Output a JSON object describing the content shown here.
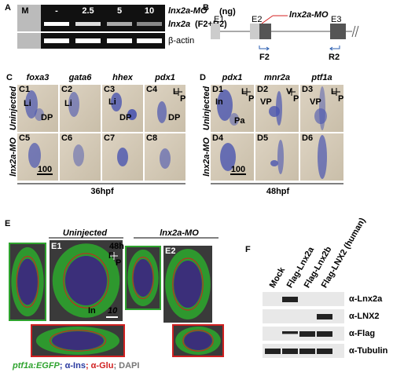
{
  "panels": {
    "a": {
      "label": "A",
      "lanes": [
        "M",
        "-",
        "2.5",
        "5",
        "10"
      ],
      "treatment": "lnx2a-MO",
      "unit": "(ng)",
      "rows": [
        {
          "gene": "lnx2a",
          "primers": "(F2+R2)"
        },
        {
          "gene": "β-actin"
        }
      ]
    },
    "b": {
      "label": "B",
      "exons": [
        "E1",
        "E2",
        "E3"
      ],
      "morpholino": "lnx2a-MO",
      "primers": [
        "F2",
        "R2"
      ]
    },
    "c": {
      "label": "C",
      "columns": [
        "foxa3",
        "gata6",
        "hhex",
        "pdx1"
      ],
      "rows": [
        "Uninjected",
        "lnx2a-MO"
      ],
      "cells": [
        {
          "id": "C1",
          "marks": [
            "Li",
            "DP"
          ]
        },
        {
          "id": "C2",
          "marks": [
            "Li"
          ]
        },
        {
          "id": "C3",
          "marks": [
            "Li",
            "DP"
          ]
        },
        {
          "id": "C4",
          "marks": [
            "DP"
          ],
          "axis": [
            "L",
            "P"
          ]
        },
        {
          "id": "C5",
          "marks": []
        },
        {
          "id": "C6",
          "marks": []
        },
        {
          "id": "C7",
          "marks": []
        },
        {
          "id": "C8",
          "marks": []
        }
      ],
      "scale_bar": "100",
      "stage": "36hpf"
    },
    "d": {
      "label": "D",
      "columns": [
        "pdx1",
        "mnr2a",
        "ptf1a"
      ],
      "rows": [
        "Uninjected",
        "lnx2a-MO"
      ],
      "cells": [
        {
          "id": "D1",
          "marks": [
            "In",
            "Pa"
          ],
          "axis": [
            "L",
            "P"
          ]
        },
        {
          "id": "D2",
          "marks": [
            "VP"
          ],
          "axis": [
            "V",
            "P"
          ]
        },
        {
          "id": "D3",
          "marks": [
            "VP"
          ],
          "axis": [
            "L",
            "P"
          ]
        },
        {
          "id": "D4",
          "marks": []
        },
        {
          "id": "D5",
          "marks": []
        },
        {
          "id": "D6",
          "marks": []
        }
      ],
      "scale_bar": "100",
      "stage": "48hpf"
    },
    "e": {
      "label": "E",
      "groups": [
        "Uninjected",
        "lnx2a-MO"
      ],
      "ids": [
        "E1",
        "E2"
      ],
      "stage": "48h",
      "axis": [
        "R",
        "P"
      ],
      "mark": "In",
      "scale_bar": "10",
      "legend": [
        "ptf1a:EGFP",
        "; α-Ins",
        "; α-Glu",
        "; DAPI"
      ]
    },
    "f": {
      "label": "F",
      "lanes": [
        "Mock",
        "Flag-Lnx2a",
        "Flag-Lnx2b",
        "Flag-LNX2 (human)"
      ],
      "blots": [
        "α-Lnx2a",
        "α-LNX2",
        "α-Flag",
        "α-Tubulin"
      ]
    }
  }
}
